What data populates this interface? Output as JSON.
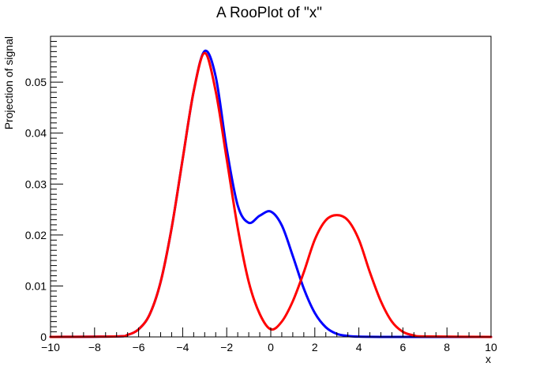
{
  "chart_data": {
    "type": "line",
    "title": "A RooPlot of \"x\"",
    "xlabel": "x",
    "ylabel": "Projection of signal",
    "xlim": [
      -10,
      10
    ],
    "ylim": [
      0,
      0.059
    ],
    "grid": false,
    "x_ticks": [
      -10,
      -8,
      -6,
      -4,
      -2,
      0,
      2,
      4,
      6,
      8,
      10
    ],
    "x_tick_labels": [
      "−10",
      "−8",
      "−6",
      "−4",
      "−2",
      "0",
      "2",
      "4",
      "6",
      "8",
      "10"
    ],
    "y_ticks": [
      0,
      0.01,
      0.02,
      0.03,
      0.04,
      0.05
    ],
    "y_tick_labels": [
      "0",
      "0.01",
      "0.02",
      "0.03",
      "0.04",
      "0.05"
    ],
    "series": [
      {
        "color": "#0000ff",
        "x": [
          -10,
          -7,
          -6.5,
          -6,
          -5.5,
          -5,
          -4.5,
          -4,
          -3.5,
          -3,
          -2.5,
          -2,
          -1.5,
          -1,
          -0.5,
          0,
          0.5,
          1,
          1.5,
          2,
          2.5,
          3,
          3.5,
          4,
          5,
          6,
          7,
          10
        ],
        "y": [
          0,
          0.0001,
          0.0004,
          0.0015,
          0.0044,
          0.0108,
          0.0214,
          0.0349,
          0.0482,
          0.0561,
          0.0511,
          0.0369,
          0.0258,
          0.0224,
          0.0238,
          0.0246,
          0.0219,
          0.0159,
          0.0095,
          0.0047,
          0.0019,
          0.0006,
          0.0002,
          5e-05,
          0,
          0,
          0,
          0
        ]
      },
      {
        "color": "#ff0000",
        "x": [
          -10,
          -7,
          -6.5,
          -6,
          -5.5,
          -5,
          -4.5,
          -4,
          -3.5,
          -3,
          -2.5,
          -2,
          -1.5,
          -1,
          -0.5,
          0,
          0.5,
          1,
          1.5,
          2,
          2.5,
          3,
          3.5,
          4,
          4.5,
          5,
          5.5,
          6,
          6.5,
          7,
          10
        ],
        "y": [
          0,
          0.0001,
          0.0004,
          0.0015,
          0.0044,
          0.0108,
          0.0214,
          0.0349,
          0.0482,
          0.0557,
          0.0482,
          0.0349,
          0.0214,
          0.0108,
          0.0045,
          0.0015,
          0.003,
          0.007,
          0.0127,
          0.0191,
          0.0229,
          0.0239,
          0.0229,
          0.0191,
          0.0127,
          0.007,
          0.003,
          0.001,
          0.0003,
          0.0001,
          0
        ]
      }
    ]
  }
}
